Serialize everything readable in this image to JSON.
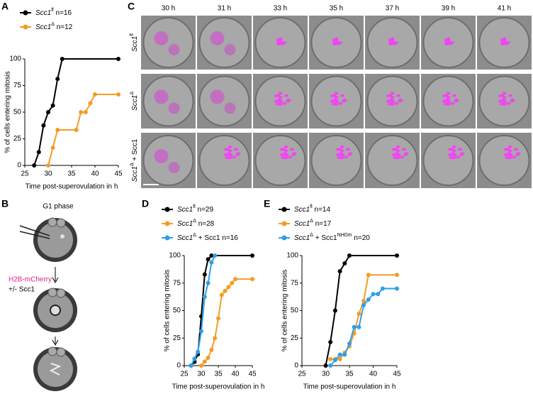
{
  "panel_labels": [
    "A",
    "B",
    "C",
    "D",
    "E"
  ],
  "diagram": {
    "stage": "G1 phase",
    "injection": "H2B-mCherry",
    "condition": "+/- Scc1"
  },
  "microscopy": {
    "times": [
      "30 h",
      "31 h",
      "33 h",
      "35 h",
      "37 h",
      "39 h",
      "41 h"
    ],
    "rows": [
      [
        {
          "t": "Scc1",
          "s": "i"
        },
        {
          "t": "fl",
          "s": "sup"
        }
      ],
      [
        {
          "t": "Scc1",
          "s": "i"
        },
        {
          "t": "Δ",
          "s": "sup"
        }
      ],
      [
        {
          "t": "Scc1",
          "s": "i"
        },
        {
          "t": "Δ",
          "s": "sup"
        },
        {
          "t": " + Scc1"
        }
      ]
    ]
  },
  "chart_data": [
    {
      "type": "line",
      "xlabel": "Time post-superovulation in h",
      "ylabel": "% of cells entering mitosis",
      "xlim": [
        25,
        45
      ],
      "xticks": [
        25,
        30,
        35,
        40,
        45
      ],
      "ylim": [
        0,
        100
      ],
      "yticks": [
        0,
        25,
        50,
        75,
        100
      ],
      "series": [
        {
          "name": "Scc1",
          "legend": [
            {
              "t": "fl",
              "s": "sup"
            },
            {
              "t": " n=16"
            }
          ],
          "color": "#000000",
          "x": [
            27,
            28,
            29,
            30,
            31,
            32,
            33,
            45
          ],
          "values": [
            0,
            12.5,
            37.5,
            50,
            56.25,
            81.25,
            100,
            100
          ]
        },
        {
          "name": "Scc1",
          "legend": [
            {
              "t": "Δ",
              "s": "sup"
            },
            {
              "t": " n=12"
            }
          ],
          "color": "#f39c25",
          "x": [
            30,
            31,
            32,
            36,
            37,
            38,
            39,
            40,
            45
          ],
          "values": [
            0,
            16.7,
            33.3,
            33.3,
            50,
            50,
            58.3,
            66.7,
            66.7
          ]
        }
      ]
    },
    {
      "type": "line",
      "xlabel": "Time post-superovulation in h",
      "ylabel": "% of cells entering mitosis",
      "xlim": [
        25,
        45
      ],
      "xticks": [
        25,
        30,
        35,
        40,
        45
      ],
      "ylim": [
        0,
        100
      ],
      "yticks": [
        0,
        25,
        50,
        75,
        100
      ],
      "series": [
        {
          "name": "Scc1",
          "legend": [
            {
              "t": "fl",
              "s": "sup"
            },
            {
              "t": " n=29"
            }
          ],
          "color": "#000000",
          "x": [
            27,
            28,
            29,
            30,
            31,
            32,
            33,
            45
          ],
          "values": [
            0,
            3.4,
            10.3,
            44.8,
            82.8,
            96.6,
            100,
            100
          ]
        },
        {
          "name": "Scc1",
          "legend": [
            {
              "t": "Δ",
              "s": "sup"
            },
            {
              "t": " n=28"
            }
          ],
          "color": "#f39c25",
          "x": [
            30,
            31,
            32,
            33,
            34,
            35,
            36,
            37,
            38,
            39,
            40,
            45
          ],
          "values": [
            0,
            3.6,
            7.1,
            14.3,
            25,
            42.9,
            64.3,
            67.9,
            71.4,
            75,
            78.6,
            78.6
          ]
        },
        {
          "name": "Scc1",
          "legend": [
            {
              "t": "Δ",
              "s": "sup"
            },
            {
              "t": " + Scc1 n=16"
            }
          ],
          "color": "#2f9fe8",
          "x": [
            27,
            28,
            29,
            30,
            31,
            32,
            33,
            34
          ],
          "values": [
            0,
            6.25,
            12.5,
            31.25,
            62.5,
            75,
            93.75,
            100
          ]
        }
      ]
    },
    {
      "type": "line",
      "xlabel": "Time post-superovulation in h",
      "ylabel": "% of cells entering mitosis",
      "xlim": [
        25,
        45
      ],
      "xticks": [
        25,
        30,
        35,
        40,
        45
      ],
      "ylim": [
        0,
        100
      ],
      "yticks": [
        0,
        25,
        50,
        75,
        100
      ],
      "series": [
        {
          "name": "Scc1",
          "legend": [
            {
              "t": "fl",
              "s": "sup"
            },
            {
              "t": " n=14"
            }
          ],
          "color": "#000000",
          "x": [
            30,
            31,
            32,
            33,
            34,
            35,
            45
          ],
          "values": [
            0,
            21.4,
            50,
            85.7,
            92.9,
            100,
            100
          ]
        },
        {
          "name": "Scc1",
          "legend": [
            {
              "t": "Δ",
              "s": "sup"
            },
            {
              "t": " n=17"
            }
          ],
          "color": "#f39c25",
          "x": [
            31,
            32,
            33,
            34,
            35,
            36,
            37,
            38,
            39,
            45
          ],
          "values": [
            5.9,
            5.9,
            5.9,
            11.8,
            17.6,
            29.4,
            47.1,
            58.8,
            82.4,
            82.4
          ]
        },
        {
          "name": "Scc1",
          "legend": [
            {
              "t": "Δ",
              "s": "sup"
            },
            {
              "t": " + Scc1"
            },
            {
              "t": "NHDm",
              "s": "sup"
            },
            {
              "t": " n=20"
            }
          ],
          "color": "#2f9fe8",
          "x": [
            31,
            32,
            33,
            34,
            35,
            36,
            37,
            38,
            39,
            40,
            41,
            42,
            45
          ],
          "values": [
            0,
            5,
            10,
            10,
            20,
            35,
            35,
            55,
            60,
            65,
            65,
            70,
            70
          ]
        }
      ]
    }
  ]
}
